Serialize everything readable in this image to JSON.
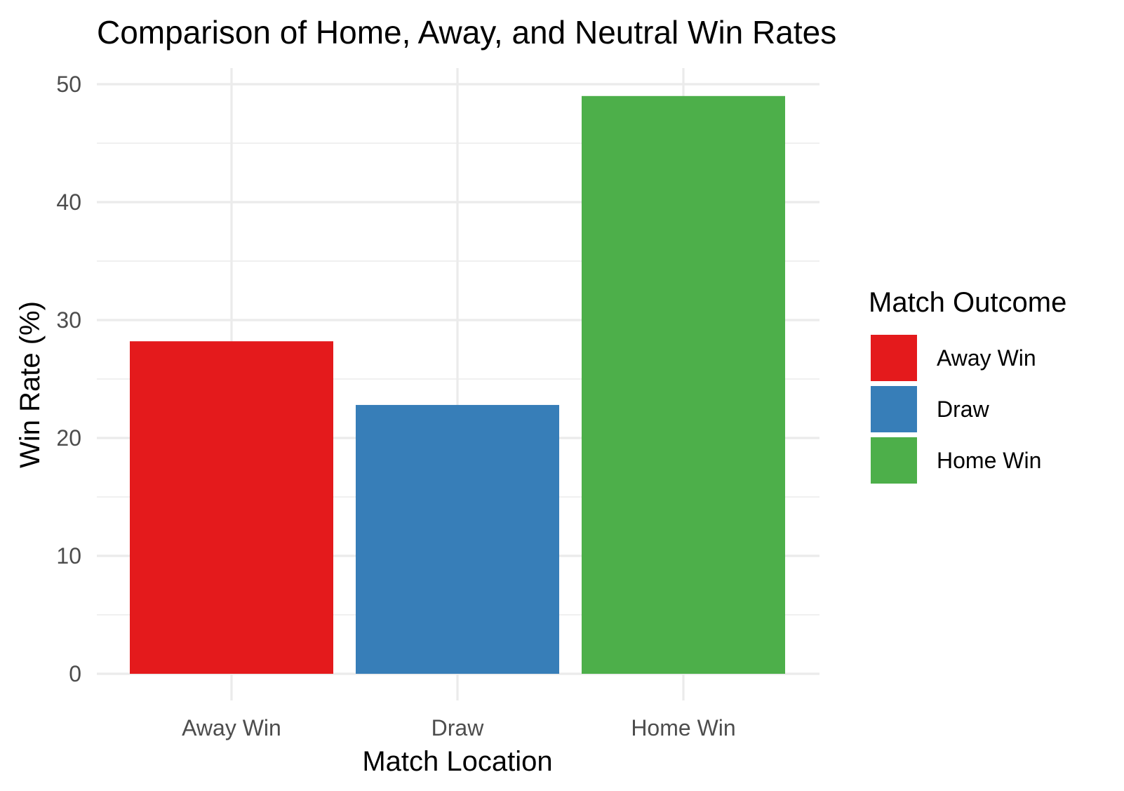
{
  "chart_data": {
    "type": "bar",
    "title": "Comparison of Home, Away, and Neutral Win Rates",
    "xlabel": "Match Location",
    "ylabel": "Win Rate (%)",
    "categories": [
      "Away Win",
      "Draw",
      "Home Win"
    ],
    "values": [
      28.2,
      22.8,
      49.0
    ],
    "colors": [
      "#e41a1c",
      "#377eb8",
      "#4daf4a"
    ],
    "ylim": [
      0,
      50
    ],
    "yticks": [
      0,
      10,
      20,
      30,
      40,
      50
    ],
    "grid": true,
    "legend": {
      "title": "Match Outcome",
      "position": "right",
      "items": [
        {
          "label": "Away Win",
          "color": "#e41a1c"
        },
        {
          "label": "Draw",
          "color": "#377eb8"
        },
        {
          "label": "Home Win",
          "color": "#4daf4a"
        }
      ]
    }
  }
}
